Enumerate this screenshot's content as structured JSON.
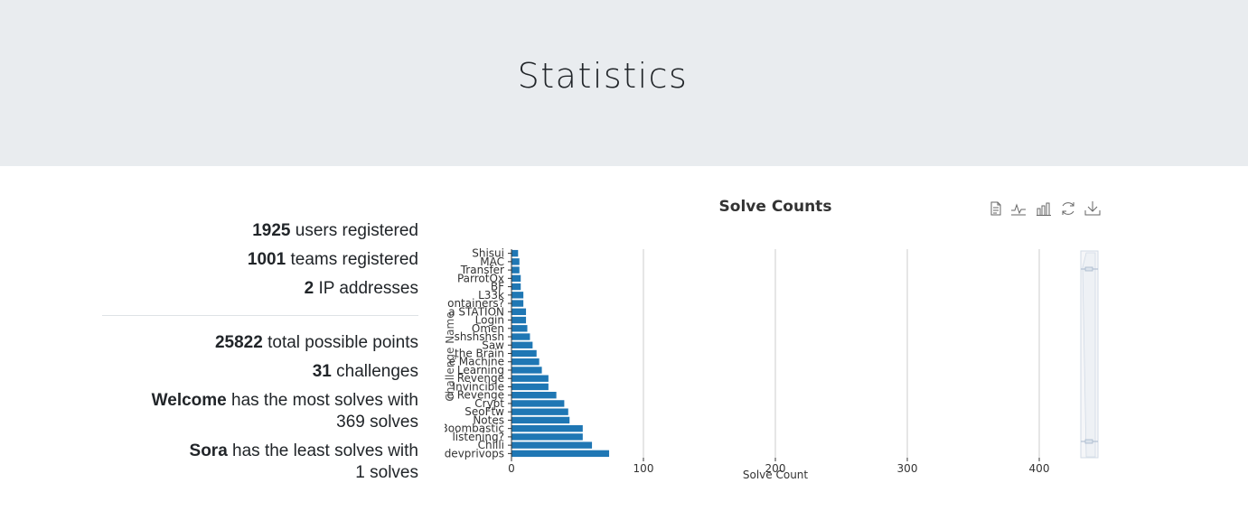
{
  "header": {
    "title": "Statistics"
  },
  "stats": {
    "users": {
      "value": "1925",
      "label": "users registered"
    },
    "teams": {
      "value": "1001",
      "label": "teams registered"
    },
    "ips": {
      "value": "2",
      "label": "IP addresses"
    },
    "points": {
      "value": "25822",
      "label": "total possible points"
    },
    "challenges": {
      "value": "31",
      "label": "challenges"
    },
    "most": {
      "name": "Welcome",
      "label": "has the most solves with",
      "count": "369 solves"
    },
    "least": {
      "name": "Sora",
      "label": "has the least solves with",
      "count": "1 solves"
    }
  },
  "toolbox": [
    "data-view-icon",
    "line-chart-icon",
    "bar-chart-icon",
    "restore-icon",
    "save-image-icon"
  ],
  "chart_data": {
    "type": "bar",
    "orientation": "horizontal",
    "title": "Solve Counts",
    "xlabel": "Solve Count",
    "ylabel": "Challenge Name",
    "xlim": [
      0,
      400
    ],
    "xticks": [
      "0",
      "100",
      "200",
      "300",
      "400"
    ],
    "grid": true,
    "color": "#1f77b4",
    "categories": [
      "Shisui",
      "MAC",
      "Transfer",
      "ParrotOx",
      "BF",
      "L33k",
      "Containers?",
      "STATION",
      "Login",
      "Omen",
      "shshshsh",
      "Saw",
      "the Brain",
      "Machine",
      "Learning",
      "Revenge",
      "Invincible",
      "Revenge",
      "Crypt",
      "SeoFtw",
      "Notes",
      "Boombastic",
      "listening?",
      "Chilli",
      "devprivops"
    ],
    "category_labels": [
      "Shisui",
      "MAC",
      "Transfer",
      "ParrotOx",
      "BF",
      "L33k",
      "ontainers?",
      "a STATION",
      "Login",
      "Omen",
      "shshshsh",
      "Saw",
      "the Brain",
      "e Machine",
      "Learning",
      "Revenge",
      "Invincible",
      "e Revenge",
      "Crypt",
      "SeoFtw",
      "Notes",
      "Boombastic",
      "listening?",
      "Chilli",
      "devprivops"
    ],
    "values": [
      5,
      6,
      6,
      7,
      7,
      9,
      9,
      11,
      11,
      12,
      14,
      16,
      19,
      21,
      23,
      28,
      28,
      34,
      40,
      43,
      44,
      54,
      54,
      61,
      74
    ]
  }
}
